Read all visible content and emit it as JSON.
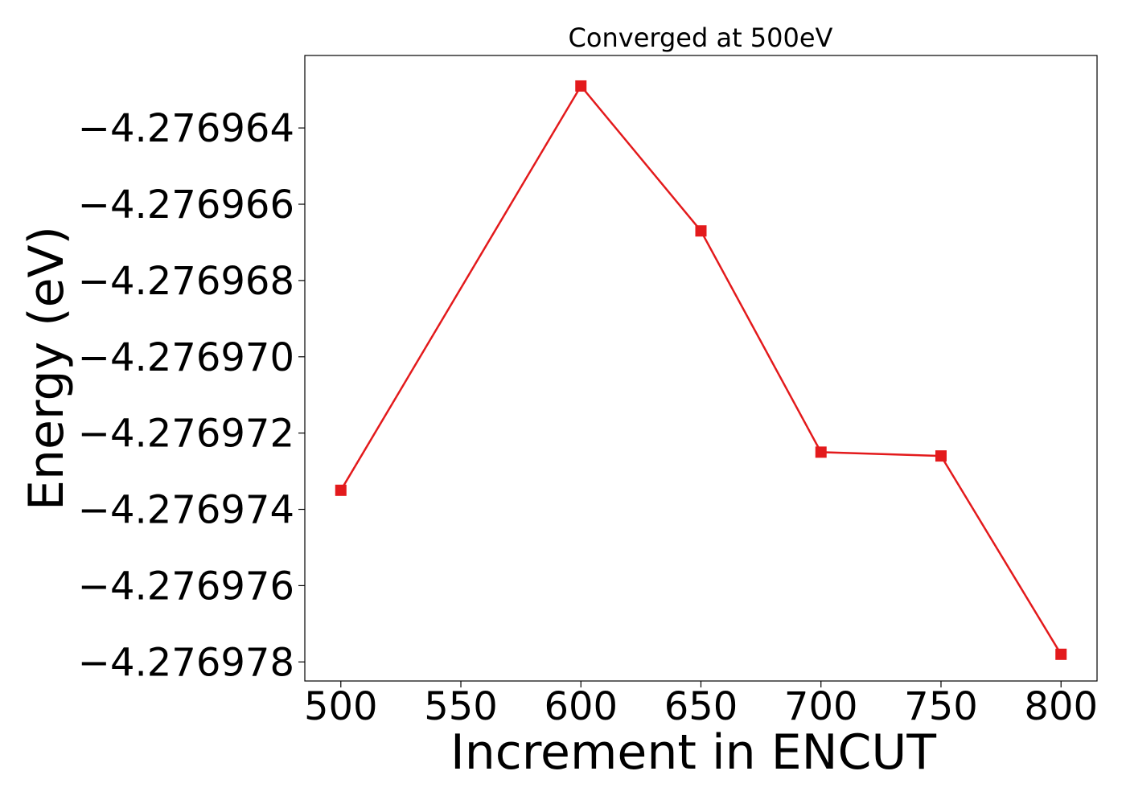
{
  "chart_data": {
    "type": "line",
    "title": "Converged at 500eV",
    "xlabel": "Increment in ENCUT",
    "ylabel": "Energy (eV)",
    "xlim": [
      485,
      815
    ],
    "ylim": [
      -4.2769785,
      -4.2769621
    ],
    "x_ticks": [
      500,
      550,
      600,
      650,
      700,
      750,
      800
    ],
    "x_tick_labels": [
      "500",
      "550",
      "600",
      "650",
      "700",
      "750",
      "800"
    ],
    "y_ticks": [
      -4.276964,
      -4.276966,
      -4.276968,
      -4.27697,
      -4.276972,
      -4.276974,
      -4.276976,
      -4.276978
    ],
    "y_tick_labels": [
      "−4.276964",
      "−4.276966",
      "−4.276968",
      "−4.276970",
      "−4.276972",
      "−4.276974",
      "−4.276976",
      "−4.276978"
    ],
    "grid": false,
    "series": [
      {
        "color": "#e31a1c",
        "marker": "square",
        "x": [
          500,
          600,
          650,
          700,
          750,
          800
        ],
        "y": [
          -4.2769735,
          -4.2769629,
          -4.2769667,
          -4.2769725,
          -4.2769726,
          -4.2769778
        ]
      }
    ]
  }
}
